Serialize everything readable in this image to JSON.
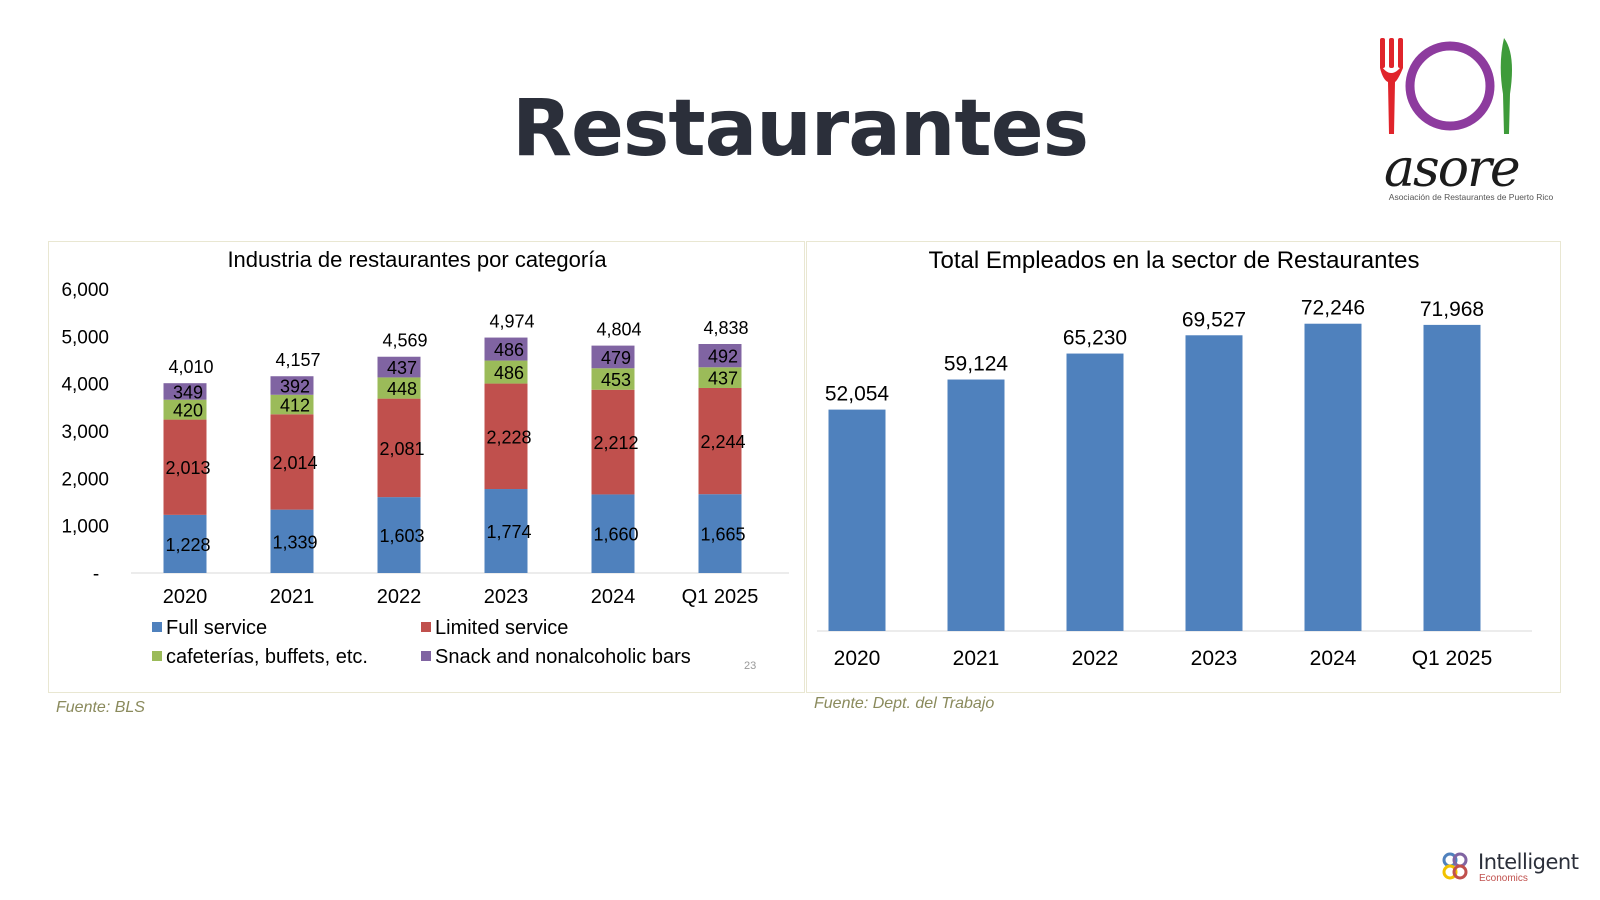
{
  "page": {
    "title": "Restaurantes",
    "logo_text": "asore",
    "logo_caption": "Asociación de Restaurantes de Puerto Rico",
    "footer_logo_text": "Intelligent",
    "footer_logo_sub": "Economics",
    "page_number": "23"
  },
  "colors": {
    "full_service": "#4f81bd",
    "limited_service": "#c0504d",
    "cafeterias": "#9bbb59",
    "snack_bars": "#8064a2",
    "employees_bar": "#4f81bd",
    "title": "#2b2f3a",
    "source": "#8a8a5c"
  },
  "sources": {
    "left": "Fuente: BLS",
    "right": "Fuente: Dept. del Trabajo"
  },
  "chart_data": [
    {
      "type": "bar",
      "stacked": true,
      "title": "Industria de restaurantes por categoría",
      "categories": [
        "2020",
        "2021",
        "2022",
        "2023",
        "2024",
        "Q1 2025"
      ],
      "series": [
        {
          "name": "Full service",
          "values": [
            1228,
            1339,
            1603,
            1774,
            1660,
            1665
          ],
          "labels": [
            "1,228",
            "1,339",
            "1,603",
            "1,774",
            "1,660",
            "1,665"
          ]
        },
        {
          "name": "Limited service",
          "values": [
            2013,
            2014,
            2081,
            2228,
            2212,
            2244
          ],
          "labels": [
            "2,013",
            "2,014",
            "2,081",
            "2,228",
            "2,212",
            "2,244"
          ]
        },
        {
          "name": "cafeterías, buffets, etc.",
          "values": [
            420,
            412,
            448,
            486,
            453,
            437
          ],
          "labels": [
            "420",
            "412",
            "448",
            "486",
            "453",
            "437"
          ]
        },
        {
          "name": "Snack and nonalcoholic bars",
          "values": [
            349,
            392,
            437,
            486,
            479,
            492
          ],
          "labels": [
            "349",
            "392",
            "437",
            "486",
            "479",
            "492"
          ]
        }
      ],
      "totals": [
        "4,010",
        "4,157",
        "4,569",
        "4,974",
        "4,804",
        "4,838"
      ],
      "y_ticks": [
        "-",
        "1,000",
        "2,000",
        "3,000",
        "4,000",
        "5,000",
        "6,000"
      ],
      "ylim": [
        0,
        6000
      ],
      "legend_position": "bottom"
    },
    {
      "type": "bar",
      "title": "Total Empleados en la sector de Restaurantes",
      "categories": [
        "2020",
        "2021",
        "2022",
        "2023",
        "2024",
        "Q1 2025"
      ],
      "values": [
        52054,
        59124,
        65230,
        69527,
        72246,
        71968
      ],
      "labels": [
        "52,054",
        "59,124",
        "65,230",
        "69,527",
        "72,246",
        "71,968"
      ],
      "ylim": [
        0,
        75000
      ]
    }
  ]
}
